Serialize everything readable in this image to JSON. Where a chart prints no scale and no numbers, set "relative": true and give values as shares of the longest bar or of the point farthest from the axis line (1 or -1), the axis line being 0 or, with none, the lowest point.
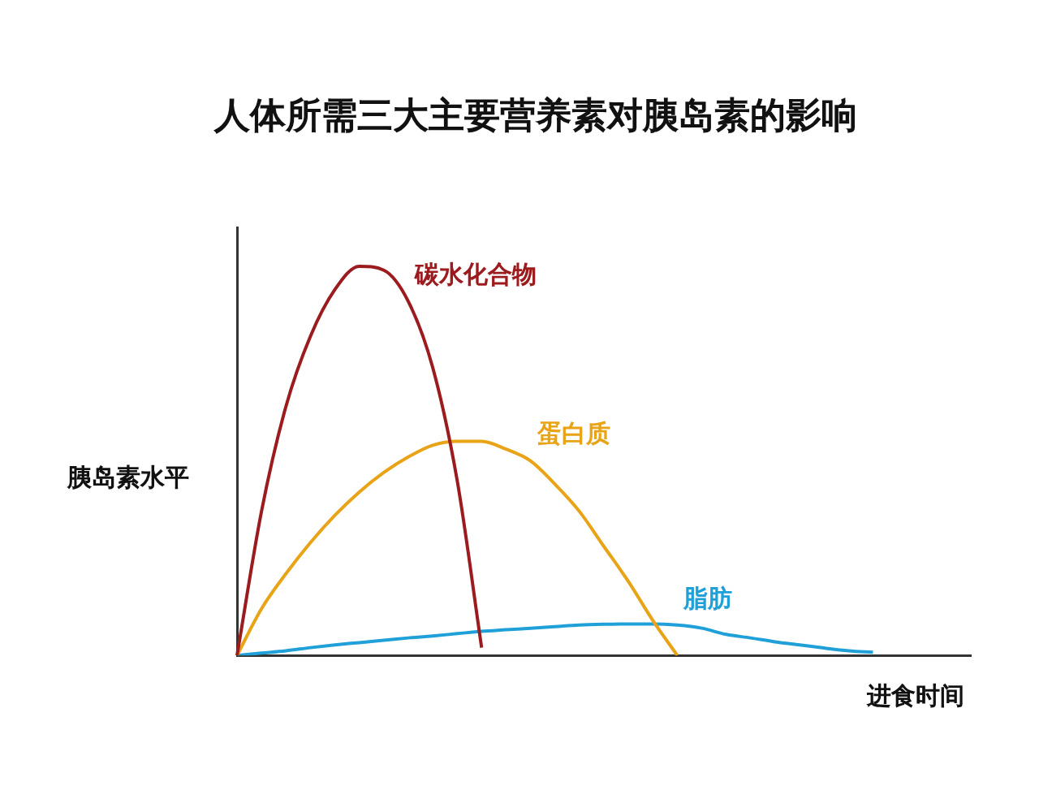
{
  "chart_data": {
    "type": "line",
    "title": "人体所需三大主要营养素对胰岛素的影响",
    "xlabel": "进食时间",
    "ylabel": "胰岛素水平",
    "relative": true,
    "categories": [
      null,
      null,
      null,
      null,
      null,
      null,
      null,
      null,
      null,
      null,
      null,
      null,
      null,
      null,
      null,
      null,
      null,
      null,
      null,
      null,
      null,
      null,
      null,
      null,
      null,
      null,
      null,
      null,
      null,
      null,
      null
    ],
    "series": [
      {
        "name": "碳水化合物",
        "color": "#9b1b1f",
        "values": [
          0,
          0.37,
          0.64,
          0.82,
          0.94,
          1.0,
          0.99,
          0.91,
          0.74,
          0.45,
          0.02,
          null,
          null,
          null,
          null,
          null,
          null,
          null,
          null,
          null,
          null,
          null,
          null,
          null,
          null,
          null,
          null,
          null,
          null,
          null,
          null
        ]
      },
      {
        "name": "蛋白质",
        "color": "#e8a317",
        "values": [
          0,
          0.12,
          0.21,
          0.29,
          0.36,
          0.42,
          0.47,
          0.51,
          0.54,
          0.55,
          0.55,
          0.53,
          0.5,
          0.44,
          0.37,
          0.28,
          0.19,
          0.09,
          0,
          null,
          null,
          null,
          null,
          null,
          null,
          null,
          null,
          null,
          null,
          null,
          null
        ]
      },
      {
        "name": "脂肪",
        "color": "#1fa0d8",
        "values": [
          0,
          0.006,
          0.012,
          0.02,
          0.027,
          0.033,
          0.039,
          0.045,
          0.05,
          0.056,
          0.062,
          0.066,
          0.07,
          0.074,
          0.078,
          0.08,
          0.081,
          0.081,
          0.078,
          0.07,
          0.054,
          0.045,
          0.035,
          0.027,
          0.019,
          0.012,
          0.008,
          null,
          null,
          null,
          null
        ]
      }
    ]
  }
}
